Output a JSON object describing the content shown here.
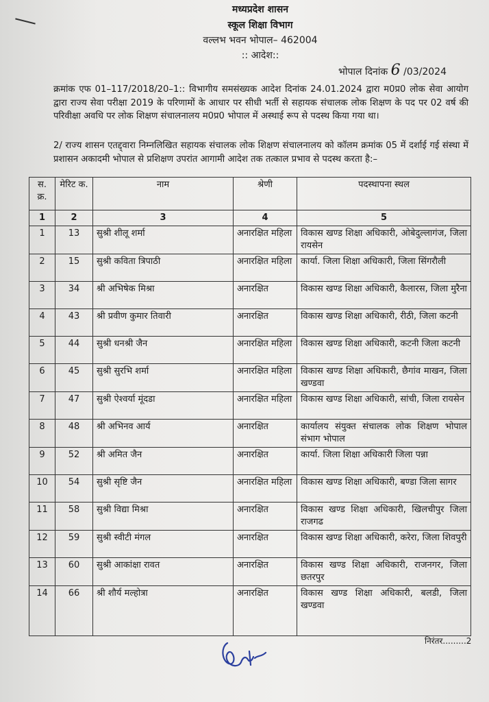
{
  "header": {
    "line1": "मध्यप्रदेश शासन",
    "line2": "स्कूल शिक्षा विभाग",
    "line3": "वल्लभ भवन भोपाल– 462004",
    "order_title": ":: आदेश::",
    "date_label": "भोपाल दिनांक",
    "date_day": "6",
    "date_rest": "/03/2024"
  },
  "paragraph1": "क्रमांक एफ 01–117/2018/20–1::  विभागीय समसंख्यक आदेश दिनांक 24.01.2024 द्वारा म0प्र0 लोक सेवा आयोग द्वारा राज्य सेवा परीक्षा 2019 के परिणामों के आधार पर सीधी भर्ती से सहायक संचालक लोक शिक्षण के पद पर 02 वर्ष की परिवीक्षा अवधि पर लोक शिक्षण संचालनालय म0प्र0 भोपाल में अस्थाई रूप से पदस्थ किया गया था।",
  "paragraph2": "2/    राज्य शासन एतद्द्वारा निम्नलिखित सहायक संचालक लोक शिक्षण संचालनालय को कॉलम क्रमांक 05 में दर्शाई गई संस्था में प्रशासन अकादमी भोपाल से प्रशिक्षण उपरांत आगामी आदेश तक तत्काल प्रभाव से पदस्थ करता है:–",
  "table": {
    "headers": [
      "स. क्र.",
      "मेरिट क.",
      "नाम",
      "श्रेणी",
      "पदस्थापना स्थल"
    ],
    "column_numbers": [
      "1",
      "2",
      "3",
      "4",
      "5"
    ],
    "rows": [
      {
        "sr": "1",
        "merit": "13",
        "name": "सुश्री शीलू शर्मा",
        "category": "अनारक्षित महिला",
        "place": "विकास खण्ड शिक्षा अधिकारी, ओबेदुल्लागंज, जिला रायसेन"
      },
      {
        "sr": "2",
        "merit": "15",
        "name": "सुश्री कविता त्रिपाठी",
        "category": "अनारक्षित महिला",
        "place": "कार्या. जिला शिक्षा अधिकारी, जिला सिंगरौली"
      },
      {
        "sr": "3",
        "merit": "34",
        "name": "श्री अभिषेक मिश्रा",
        "category": "अनारक्षित",
        "place": "विकास खण्ड शिक्षा अधिकारी, कैलारस, जिला मुरैना"
      },
      {
        "sr": "4",
        "merit": "43",
        "name": "श्री प्रवीण कुमार तिवारी",
        "category": "अनारक्षित",
        "place": "विकास खण्ड शिक्षा अधिकारी, रीठी, जिला कटनी"
      },
      {
        "sr": "5",
        "merit": "44",
        "name": "सुश्री धनश्री जैन",
        "category": "अनारक्षित महिला",
        "place": "विकास खण्ड शिक्षा अधिकारी, कटनी जिला कटनी"
      },
      {
        "sr": "6",
        "merit": "45",
        "name": "सुश्री सुरभि शर्मा",
        "category": "अनारक्षित महिला",
        "place": "विकास खण्ड शिक्षा अधिकारी, छैगांव माखन, जिला खण्डवा"
      },
      {
        "sr": "7",
        "merit": "47",
        "name": "सुश्री ऐश्वर्या मूंदडा",
        "category": "अनारक्षित महिला",
        "place": "विकास खण्ड शिक्षा अधिकारी, सांची, जिला रायसेन"
      },
      {
        "sr": "8",
        "merit": "48",
        "name": "श्री अभिनव आर्य",
        "category": "अनारक्षित",
        "place": "कार्यालय संयुक्त संचालक लोक शिक्षण भोपाल संभाग भोपाल"
      },
      {
        "sr": "9",
        "merit": "52",
        "name": "श्री अमित जैन",
        "category": "अनारक्षित",
        "place": "कार्या. जिला शिक्षा अधिकारी जिला पन्ना"
      },
      {
        "sr": "10",
        "merit": "54",
        "name": "सुश्री सृष्टि जैन",
        "category": "अनारक्षित महिला",
        "place": "विकास खण्ड शिक्षा अधिकारी, बण्डा जिला सागर"
      },
      {
        "sr": "11",
        "merit": "58",
        "name": "सुश्री विद्या मिश्रा",
        "category": "अनारक्षित",
        "place": "विकास खण्ड शिक्षा अधिकारी, खिलचीपुर जिला राजगढ"
      },
      {
        "sr": "12",
        "merit": "59",
        "name": "सुश्री स्वीटी मंगल",
        "category": "अनारक्षित",
        "place": "विकास खण्ड शिक्षा अधिकारी, करेरा, जिला शिवपुरी"
      },
      {
        "sr": "13",
        "merit": "60",
        "name": "सुश्री आकांक्षा रावत",
        "category": "अनारक्षित",
        "place": "विकास खण्ड शिक्षा अधिकारी, राजनगर, जिला छतरपुर"
      },
      {
        "sr": "14",
        "merit": "66",
        "name": "श्री शौर्य मल्होत्रा",
        "category": "अनारक्षित",
        "place": "विकास खण्ड शिक्षा अधिकारी, बलडी, जिला खण्डवा"
      }
    ]
  },
  "continued": "निरंतर.........2",
  "colors": {
    "ink": "#1c1c1c",
    "signature_ink": "#2b3f9e",
    "paper": "#efeeec"
  }
}
